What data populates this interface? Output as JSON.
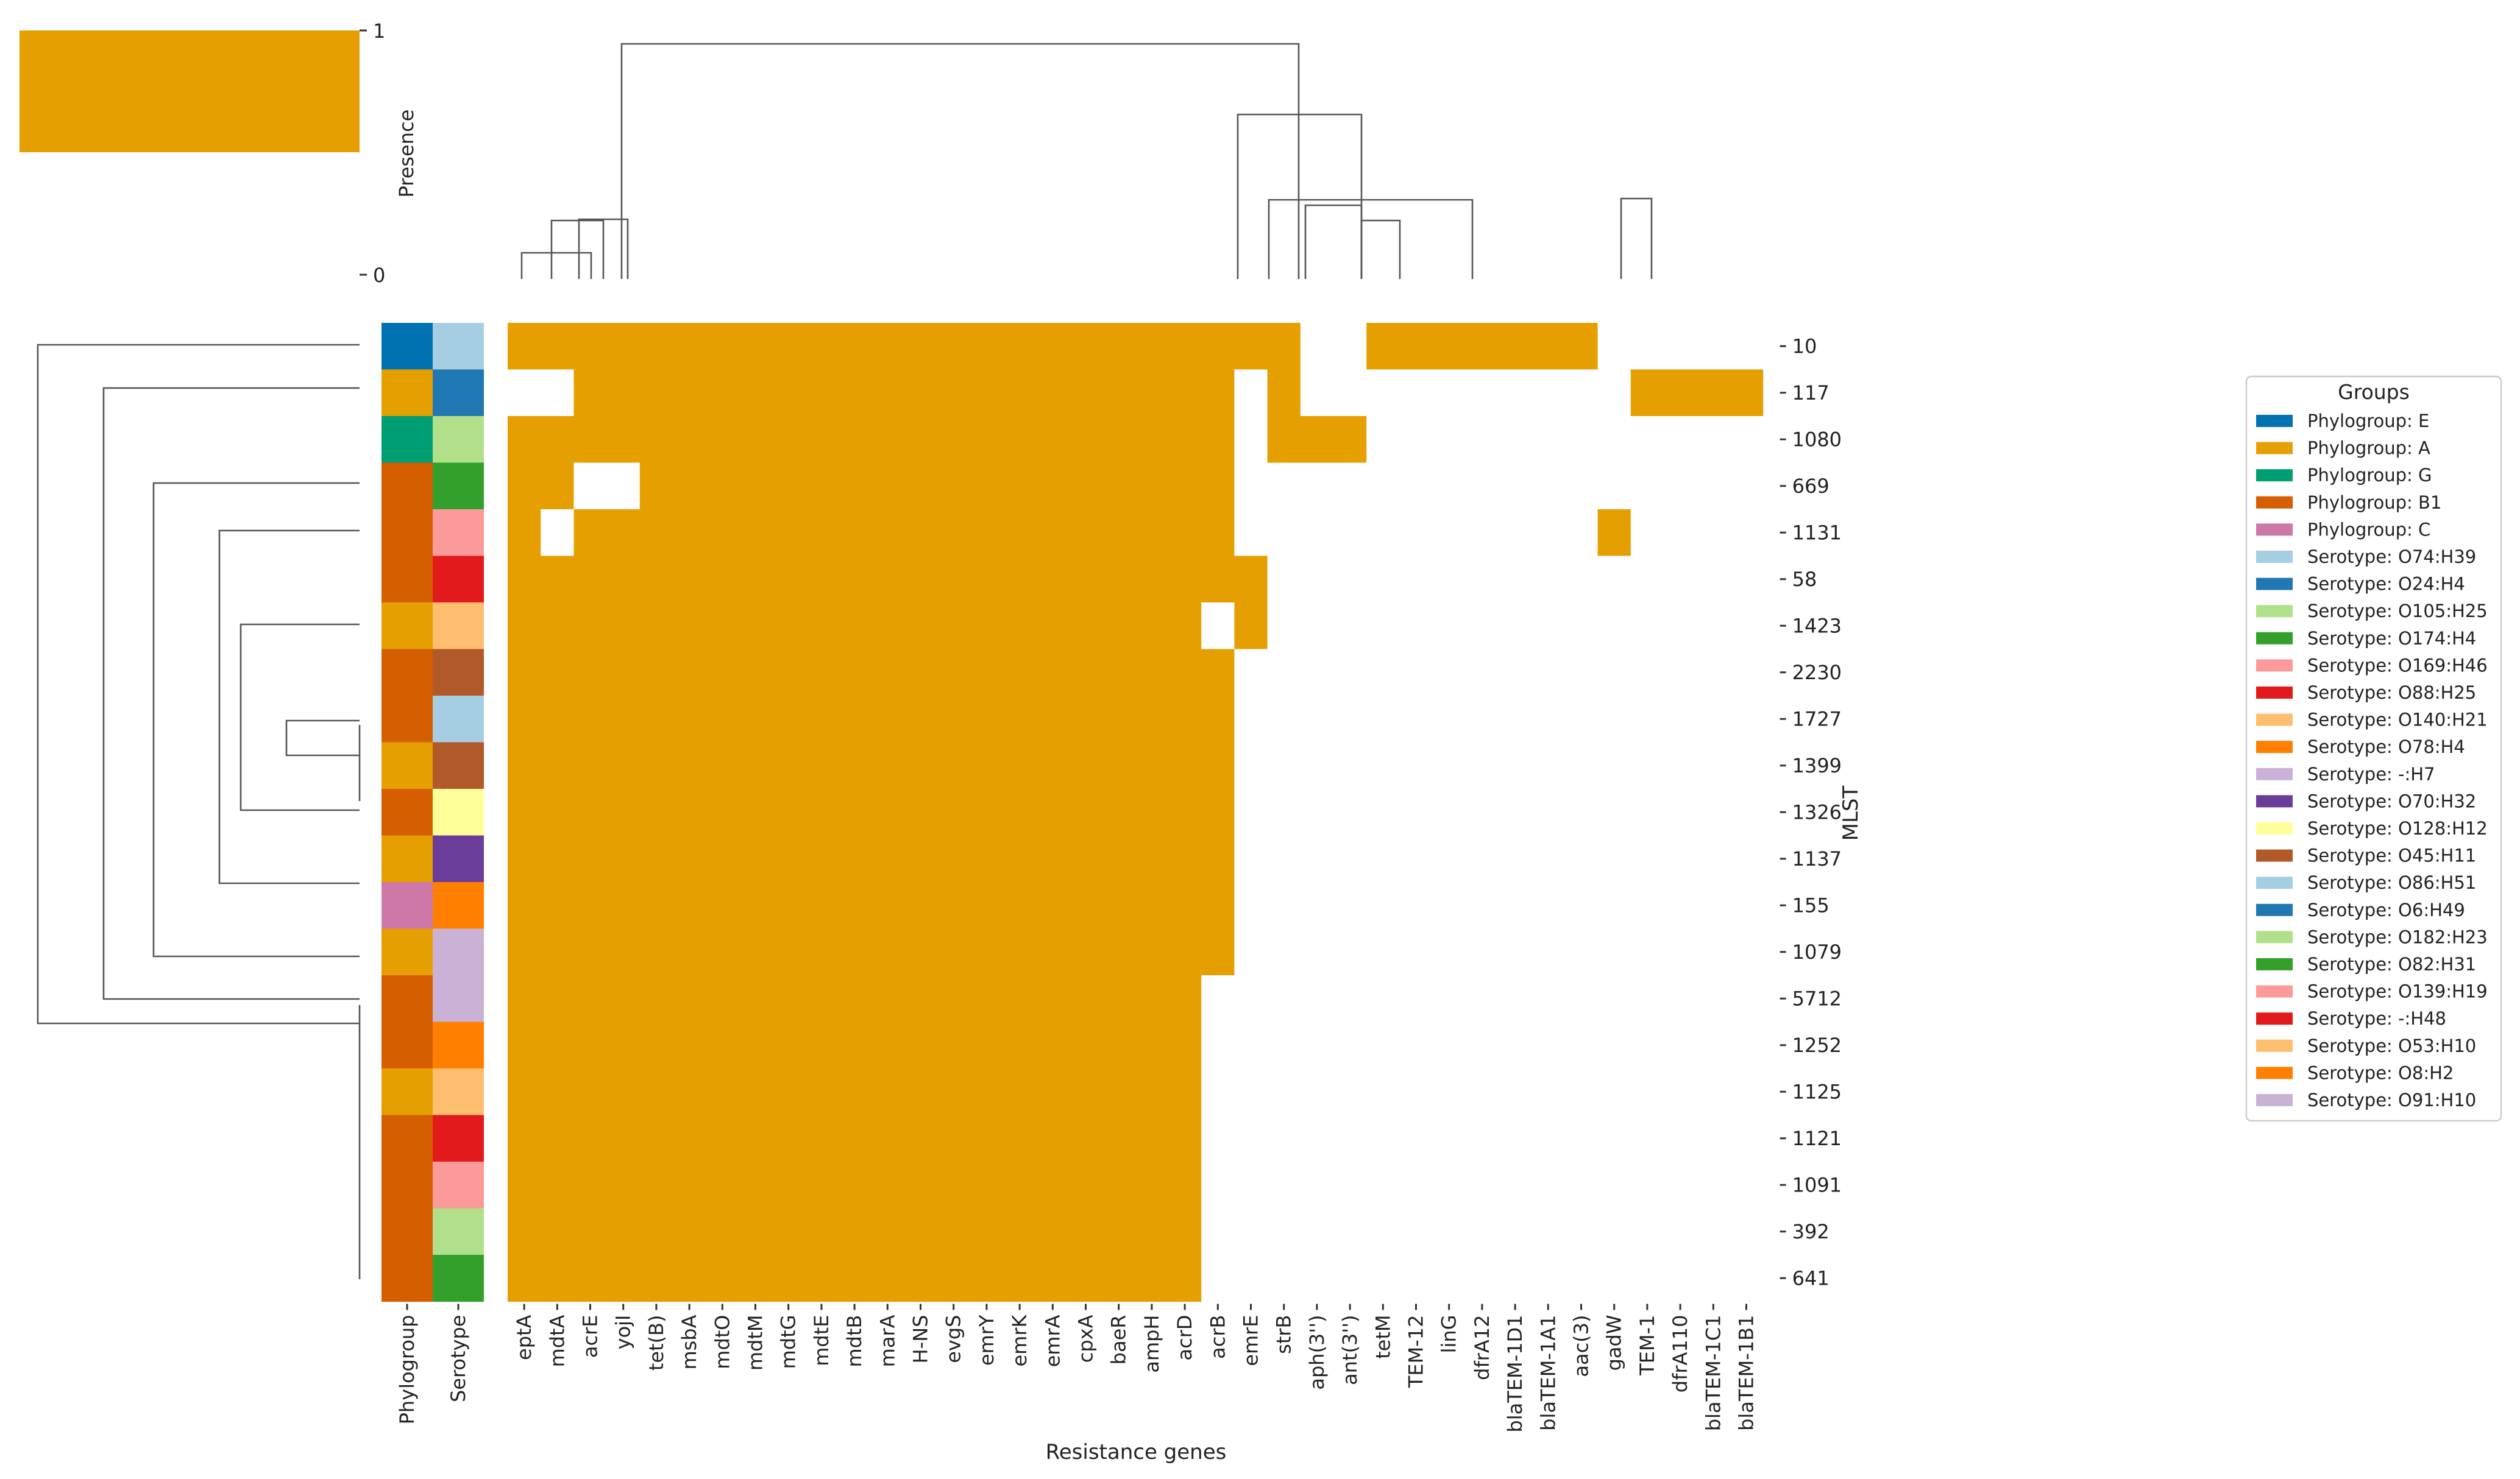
{
  "chart_data": {
    "type": "heatmap",
    "title": "",
    "xlabel": "Resistance genes",
    "ylabel": "MLST",
    "colorbar": {
      "label": "Presence",
      "ticks": [
        "0",
        "1"
      ],
      "range": [
        0,
        1
      ]
    },
    "presence_color": "#E69F00",
    "absence_color": "#FFFFFF",
    "genes": [
      "eptA",
      "mdtA",
      "acrE",
      "yojI",
      "tet(B)",
      "msbA",
      "mdtO",
      "mdtM",
      "mdtG",
      "mdtE",
      "mdtB",
      "marA",
      "H-NS",
      "evgS",
      "emrY",
      "emrK",
      "emrA",
      "cpxA",
      "baeR",
      "ampH",
      "acrD",
      "acrB",
      "emrE",
      "strB",
      "aph(3'')",
      "ant(3'')",
      "tetM",
      "TEM-12",
      "linG",
      "dfrA12",
      "blaTEM-1D1",
      "blaTEM-1A1",
      "aac(3)",
      "gadW",
      "TEM-1",
      "dfrA110",
      "blaTEM-1C1",
      "blaTEM-1B1"
    ],
    "rows": [
      {
        "mlst": "10",
        "phylogroup": "E",
        "serotype": "O74:H39",
        "present": [
          "eptA",
          "mdtA",
          "acrE",
          "yojI",
          "tet(B)",
          "msbA",
          "mdtO",
          "mdtM",
          "mdtG",
          "mdtE",
          "mdtB",
          "marA",
          "H-NS",
          "evgS",
          "emrY",
          "emrK",
          "emrA",
          "cpxA",
          "baeR",
          "ampH",
          "acrD",
          "acrB",
          "emrE",
          "strB",
          "tetM",
          "TEM-12",
          "linG",
          "dfrA12",
          "blaTEM-1D1",
          "blaTEM-1A1",
          "aac(3)"
        ]
      },
      {
        "mlst": "117",
        "phylogroup": "A",
        "serotype": "O24:H4",
        "present": [
          "acrE",
          "yojI",
          "tet(B)",
          "msbA",
          "mdtO",
          "mdtM",
          "mdtG",
          "mdtE",
          "mdtB",
          "marA",
          "H-NS",
          "evgS",
          "emrY",
          "emrK",
          "emrA",
          "cpxA",
          "baeR",
          "ampH",
          "acrD",
          "acrB",
          "strB",
          "TEM-1",
          "dfrA110",
          "blaTEM-1C1",
          "blaTEM-1B1"
        ]
      },
      {
        "mlst": "1080",
        "phylogroup": "G",
        "serotype": "O105:H25",
        "present": [
          "eptA",
          "mdtA",
          "acrE",
          "yojI",
          "tet(B)",
          "msbA",
          "mdtO",
          "mdtM",
          "mdtG",
          "mdtE",
          "mdtB",
          "marA",
          "H-NS",
          "evgS",
          "emrY",
          "emrK",
          "emrA",
          "cpxA",
          "baeR",
          "ampH",
          "acrD",
          "acrB",
          "strB",
          "aph(3'')",
          "ant(3'')"
        ]
      },
      {
        "mlst": "669",
        "phylogroup": "B1",
        "serotype": "O174:H4",
        "present": [
          "eptA",
          "mdtA",
          "tet(B)",
          "msbA",
          "mdtO",
          "mdtM",
          "mdtG",
          "mdtE",
          "mdtB",
          "marA",
          "H-NS",
          "evgS",
          "emrY",
          "emrK",
          "emrA",
          "cpxA",
          "baeR",
          "ampH",
          "acrD",
          "acrB"
        ]
      },
      {
        "mlst": "1131",
        "phylogroup": "B1",
        "serotype": "O169:H46",
        "present": [
          "eptA",
          "acrE",
          "yojI",
          "tet(B)",
          "msbA",
          "mdtO",
          "mdtM",
          "mdtG",
          "mdtE",
          "mdtB",
          "marA",
          "H-NS",
          "evgS",
          "emrY",
          "emrK",
          "emrA",
          "cpxA",
          "baeR",
          "ampH",
          "acrD",
          "acrB",
          "gadW"
        ]
      },
      {
        "mlst": "58",
        "phylogroup": "B1",
        "serotype": "O88:H25",
        "present": [
          "eptA",
          "mdtA",
          "acrE",
          "yojI",
          "tet(B)",
          "msbA",
          "mdtO",
          "mdtM",
          "mdtG",
          "mdtE",
          "mdtB",
          "marA",
          "H-NS",
          "evgS",
          "emrY",
          "emrK",
          "emrA",
          "cpxA",
          "baeR",
          "ampH",
          "acrD",
          "acrB",
          "emrE"
        ]
      },
      {
        "mlst": "1423",
        "phylogroup": "A",
        "serotype": "O140:H21",
        "present": [
          "eptA",
          "mdtA",
          "acrE",
          "yojI",
          "tet(B)",
          "msbA",
          "mdtO",
          "mdtM",
          "mdtG",
          "mdtE",
          "mdtB",
          "marA",
          "H-NS",
          "evgS",
          "emrY",
          "emrK",
          "emrA",
          "cpxA",
          "baeR",
          "ampH",
          "acrD",
          "emrE"
        ]
      },
      {
        "mlst": "2230",
        "phylogroup": "B1",
        "serotype": "O45:H11",
        "present": [
          "eptA",
          "mdtA",
          "acrE",
          "yojI",
          "tet(B)",
          "msbA",
          "mdtO",
          "mdtM",
          "mdtG",
          "mdtE",
          "mdtB",
          "marA",
          "H-NS",
          "evgS",
          "emrY",
          "emrK",
          "emrA",
          "cpxA",
          "baeR",
          "ampH",
          "acrD",
          "acrB"
        ]
      },
      {
        "mlst": "1727",
        "phylogroup": "B1",
        "serotype": "O86:H51",
        "present": [
          "eptA",
          "mdtA",
          "acrE",
          "yojI",
          "tet(B)",
          "msbA",
          "mdtO",
          "mdtM",
          "mdtG",
          "mdtE",
          "mdtB",
          "marA",
          "H-NS",
          "evgS",
          "emrY",
          "emrK",
          "emrA",
          "cpxA",
          "baeR",
          "ampH",
          "acrD",
          "acrB"
        ]
      },
      {
        "mlst": "1399",
        "phylogroup": "A",
        "serotype": "O45:H11",
        "present": [
          "eptA",
          "mdtA",
          "acrE",
          "yojI",
          "tet(B)",
          "msbA",
          "mdtO",
          "mdtM",
          "mdtG",
          "mdtE",
          "mdtB",
          "marA",
          "H-NS",
          "evgS",
          "emrY",
          "emrK",
          "emrA",
          "cpxA",
          "baeR",
          "ampH",
          "acrD",
          "acrB"
        ]
      },
      {
        "mlst": "1326",
        "phylogroup": "B1",
        "serotype": "O128:H12",
        "present": [
          "eptA",
          "mdtA",
          "acrE",
          "yojI",
          "tet(B)",
          "msbA",
          "mdtO",
          "mdtM",
          "mdtG",
          "mdtE",
          "mdtB",
          "marA",
          "H-NS",
          "evgS",
          "emrY",
          "emrK",
          "emrA",
          "cpxA",
          "baeR",
          "ampH",
          "acrD",
          "acrB"
        ]
      },
      {
        "mlst": "1137",
        "phylogroup": "A",
        "serotype": "O70:H32",
        "present": [
          "eptA",
          "mdtA",
          "acrE",
          "yojI",
          "tet(B)",
          "msbA",
          "mdtO",
          "mdtM",
          "mdtG",
          "mdtE",
          "mdtB",
          "marA",
          "H-NS",
          "evgS",
          "emrY",
          "emrK",
          "emrA",
          "cpxA",
          "baeR",
          "ampH",
          "acrD",
          "acrB"
        ]
      },
      {
        "mlst": "155",
        "phylogroup": "C",
        "serotype": "O78:H4",
        "present": [
          "eptA",
          "mdtA",
          "acrE",
          "yojI",
          "tet(B)",
          "msbA",
          "mdtO",
          "mdtM",
          "mdtG",
          "mdtE",
          "mdtB",
          "marA",
          "H-NS",
          "evgS",
          "emrY",
          "emrK",
          "emrA",
          "cpxA",
          "baeR",
          "ampH",
          "acrD",
          "acrB"
        ]
      },
      {
        "mlst": "1079",
        "phylogroup": "A",
        "serotype": "-:H7",
        "present": [
          "eptA",
          "mdtA",
          "acrE",
          "yojI",
          "tet(B)",
          "msbA",
          "mdtO",
          "mdtM",
          "mdtG",
          "mdtE",
          "mdtB",
          "marA",
          "H-NS",
          "evgS",
          "emrY",
          "emrK",
          "emrA",
          "cpxA",
          "baeR",
          "ampH",
          "acrD",
          "acrB"
        ]
      },
      {
        "mlst": "5712",
        "phylogroup": "B1",
        "serotype": "O91:H10",
        "present": [
          "eptA",
          "mdtA",
          "acrE",
          "yojI",
          "tet(B)",
          "msbA",
          "mdtO",
          "mdtM",
          "mdtG",
          "mdtE",
          "mdtB",
          "marA",
          "H-NS",
          "evgS",
          "emrY",
          "emrK",
          "emrA",
          "cpxA",
          "baeR",
          "ampH",
          "acrD"
        ]
      },
      {
        "mlst": "1252",
        "phylogroup": "B1",
        "serotype": "O8:H2",
        "present": [
          "eptA",
          "mdtA",
          "acrE",
          "yojI",
          "tet(B)",
          "msbA",
          "mdtO",
          "mdtM",
          "mdtG",
          "mdtE",
          "mdtB",
          "marA",
          "H-NS",
          "evgS",
          "emrY",
          "emrK",
          "emrA",
          "cpxA",
          "baeR",
          "ampH",
          "acrD"
        ]
      },
      {
        "mlst": "1125",
        "phylogroup": "A",
        "serotype": "O53:H10",
        "present": [
          "eptA",
          "mdtA",
          "acrE",
          "yojI",
          "tet(B)",
          "msbA",
          "mdtO",
          "mdtM",
          "mdtG",
          "mdtE",
          "mdtB",
          "marA",
          "H-NS",
          "evgS",
          "emrY",
          "emrK",
          "emrA",
          "cpxA",
          "baeR",
          "ampH",
          "acrD"
        ]
      },
      {
        "mlst": "1121",
        "phylogroup": "B1",
        "serotype": "-:H48",
        "present": [
          "eptA",
          "mdtA",
          "acrE",
          "yojI",
          "tet(B)",
          "msbA",
          "mdtO",
          "mdtM",
          "mdtG",
          "mdtE",
          "mdtB",
          "marA",
          "H-NS",
          "evgS",
          "emrY",
          "emrK",
          "emrA",
          "cpxA",
          "baeR",
          "ampH",
          "acrD"
        ]
      },
      {
        "mlst": "1091",
        "phylogroup": "B1",
        "serotype": "O139:H19",
        "present": [
          "eptA",
          "mdtA",
          "acrE",
          "yojI",
          "tet(B)",
          "msbA",
          "mdtO",
          "mdtM",
          "mdtG",
          "mdtE",
          "mdtB",
          "marA",
          "H-NS",
          "evgS",
          "emrY",
          "emrK",
          "emrA",
          "cpxA",
          "baeR",
          "ampH",
          "acrD"
        ]
      },
      {
        "mlst": "392",
        "phylogroup": "B1",
        "serotype": "O182:H23",
        "present": [
          "eptA",
          "mdtA",
          "acrE",
          "yojI",
          "tet(B)",
          "msbA",
          "mdtO",
          "mdtM",
          "mdtG",
          "mdtE",
          "mdtB",
          "marA",
          "H-NS",
          "evgS",
          "emrY",
          "emrK",
          "emrA",
          "cpxA",
          "baeR",
          "ampH",
          "acrD"
        ]
      },
      {
        "mlst": "641",
        "phylogroup": "B1",
        "serotype": "O82:H31",
        "present": [
          "eptA",
          "mdtA",
          "acrE",
          "yojI",
          "tet(B)",
          "msbA",
          "mdtO",
          "mdtM",
          "mdtG",
          "mdtE",
          "mdtB",
          "marA",
          "H-NS",
          "evgS",
          "emrY",
          "emrK",
          "emrA",
          "cpxA",
          "baeR",
          "ampH",
          "acrD"
        ]
      }
    ],
    "annotation_labels": [
      "Phylogroup",
      "Serotype"
    ],
    "serotype_cell_colors": [
      "#A6CEE3",
      "#1F78B4",
      "#B2DF8A",
      "#33A02C",
      "#FB9A99",
      "#E31A1C",
      "#FDBF6F",
      "#B15928",
      "#A6CEE3",
      "#B15928",
      "#FFFF99",
      "#6A3D9A",
      "#FF7F00",
      "#CAB2D6",
      "#CAB2D6",
      "#FF7F00",
      "#FDBF6F",
      "#E31A1C",
      "#FB9A99",
      "#B2DF8A",
      "#33A02C"
    ],
    "legend": {
      "title": "Groups",
      "placement": "right",
      "entries": [
        {
          "label": "Phylogroup: E",
          "color": "#0072B2"
        },
        {
          "label": "Phylogroup: A",
          "color": "#E69F00"
        },
        {
          "label": "Phylogroup: G",
          "color": "#009E73"
        },
        {
          "label": "Phylogroup: B1",
          "color": "#D55E00"
        },
        {
          "label": "Phylogroup: C",
          "color": "#CC79A7"
        },
        {
          "label": "Serotype: O74:H39",
          "color": "#A6CEE3"
        },
        {
          "label": "Serotype: O24:H4",
          "color": "#1F78B4"
        },
        {
          "label": "Serotype: O105:H25",
          "color": "#B2DF8A"
        },
        {
          "label": "Serotype: O174:H4",
          "color": "#33A02C"
        },
        {
          "label": "Serotype: O169:H46",
          "color": "#FB9A99"
        },
        {
          "label": "Serotype: O88:H25",
          "color": "#E31A1C"
        },
        {
          "label": "Serotype: O140:H21",
          "color": "#FDBF6F"
        },
        {
          "label": "Serotype: O78:H4",
          "color": "#FF7F00"
        },
        {
          "label": "Serotype: -:H7",
          "color": "#CAB2D6"
        },
        {
          "label": "Serotype: O70:H32",
          "color": "#6A3D9A"
        },
        {
          "label": "Serotype: O128:H12",
          "color": "#FFFF99"
        },
        {
          "label": "Serotype: O45:H11",
          "color": "#B15928"
        },
        {
          "label": "Serotype: O86:H51",
          "color": "#A6CEE3"
        },
        {
          "label": "Serotype: O6:H49",
          "color": "#1F78B4"
        },
        {
          "label": "Serotype: O182:H23",
          "color": "#B2DF8A"
        },
        {
          "label": "Serotype: O82:H31",
          "color": "#33A02C"
        },
        {
          "label": "Serotype: O139:H19",
          "color": "#FB9A99"
        },
        {
          "label": "Serotype: -:H48",
          "color": "#E31A1C"
        },
        {
          "label": "Serotype: O53:H10",
          "color": "#FDBF6F"
        },
        {
          "label": "Serotype: O8:H2",
          "color": "#FF7F00"
        },
        {
          "label": "Serotype: O91:H10",
          "color": "#CAB2D6"
        }
      ]
    }
  }
}
